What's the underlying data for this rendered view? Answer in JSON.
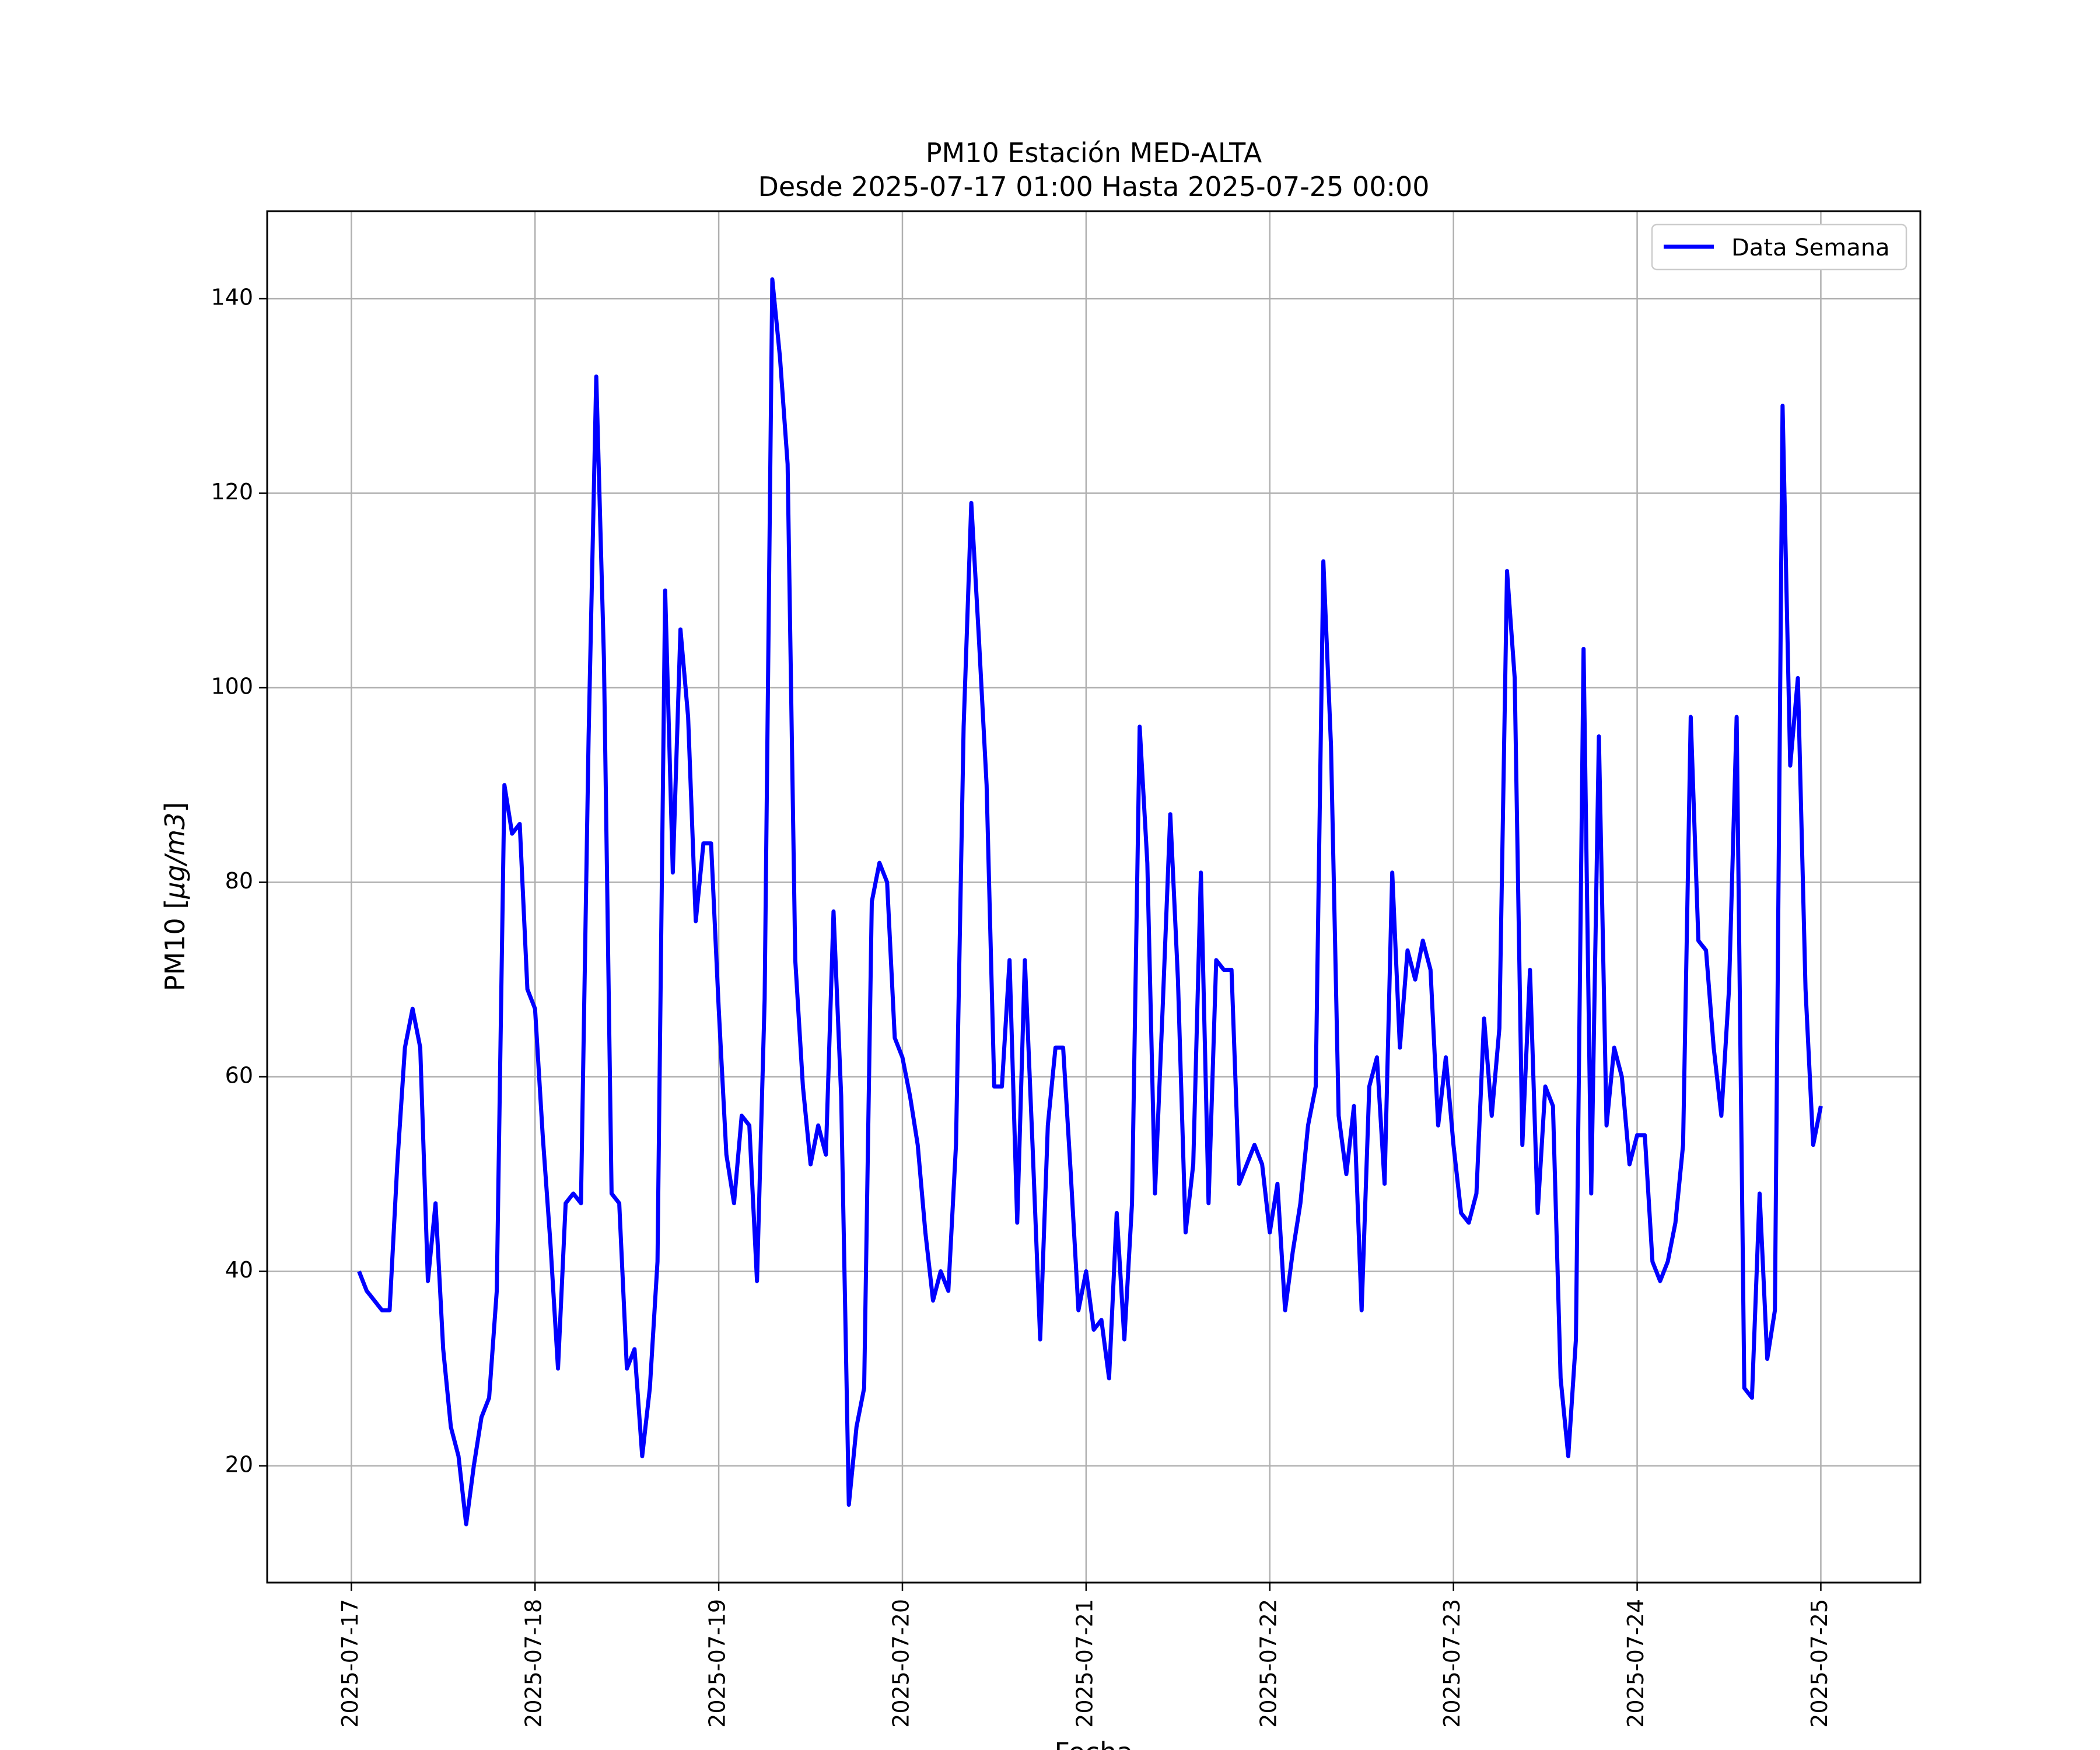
{
  "chart_data": {
    "type": "line",
    "title": "PM10 Estación MED-ALTA",
    "subtitle": "Desde 2025-07-17 01:00 Hasta 2025-07-25 00:00",
    "xlabel": "Fecha",
    "ylabel": "PM10 [μg/m3]",
    "x_ticks": [
      "2025-07-17",
      "2025-07-18",
      "2025-07-19",
      "2025-07-20",
      "2025-07-21",
      "2025-07-22",
      "2025-07-23",
      "2025-07-24",
      "2025-07-25"
    ],
    "y_ticks": [
      20,
      40,
      60,
      80,
      100,
      120,
      140
    ],
    "xlim": [
      "2025-07-16 13:00",
      "2025-07-25 13:00"
    ],
    "ylim": [
      8,
      149
    ],
    "grid": true,
    "legend_position": "top-right",
    "line_color": "#0000ff",
    "series": [
      {
        "name": "Data Semana",
        "start": "2025-07-17 01:00",
        "step": "1 hour",
        "values": [
          40,
          38,
          37,
          36,
          36,
          51,
          63,
          67,
          63,
          39,
          47,
          32,
          24,
          21,
          14,
          20,
          25,
          27,
          38,
          90,
          85,
          86,
          69,
          67,
          54,
          43,
          30,
          47,
          48,
          47,
          95,
          132,
          103,
          48,
          47,
          30,
          32,
          21,
          28,
          41,
          110,
          81,
          106,
          97,
          76,
          84,
          84,
          67,
          52,
          47,
          56,
          55,
          39,
          68,
          142,
          134,
          123,
          72,
          59,
          51,
          55,
          52,
          77,
          58,
          16,
          24,
          28,
          78,
          82,
          80,
          64,
          62,
          58,
          53,
          44,
          37,
          40,
          38,
          53,
          96,
          119,
          105,
          90,
          59,
          59,
          72,
          45,
          72,
          53,
          33,
          55,
          63,
          63,
          50,
          36,
          40,
          34,
          35,
          29,
          46,
          33,
          47,
          96,
          82,
          48,
          67,
          87,
          70,
          44,
          51,
          81,
          47,
          72,
          71,
          71,
          49,
          51,
          53,
          51,
          44,
          49,
          36,
          42,
          47,
          55,
          59,
          113,
          94,
          56,
          50,
          57,
          36,
          59,
          62,
          49,
          81,
          63,
          73,
          70,
          74,
          71,
          55,
          62,
          53,
          46,
          45,
          48,
          66,
          56,
          65,
          112,
          101,
          53,
          71,
          46,
          59,
          57,
          29,
          21,
          33,
          104,
          48,
          95,
          55,
          63,
          60,
          51,
          54,
          54,
          41,
          39,
          41,
          45,
          53,
          97,
          74,
          73,
          63,
          56,
          69,
          97,
          28,
          27,
          48,
          31,
          36,
          129,
          92,
          101,
          69,
          53,
          57
        ]
      }
    ]
  }
}
